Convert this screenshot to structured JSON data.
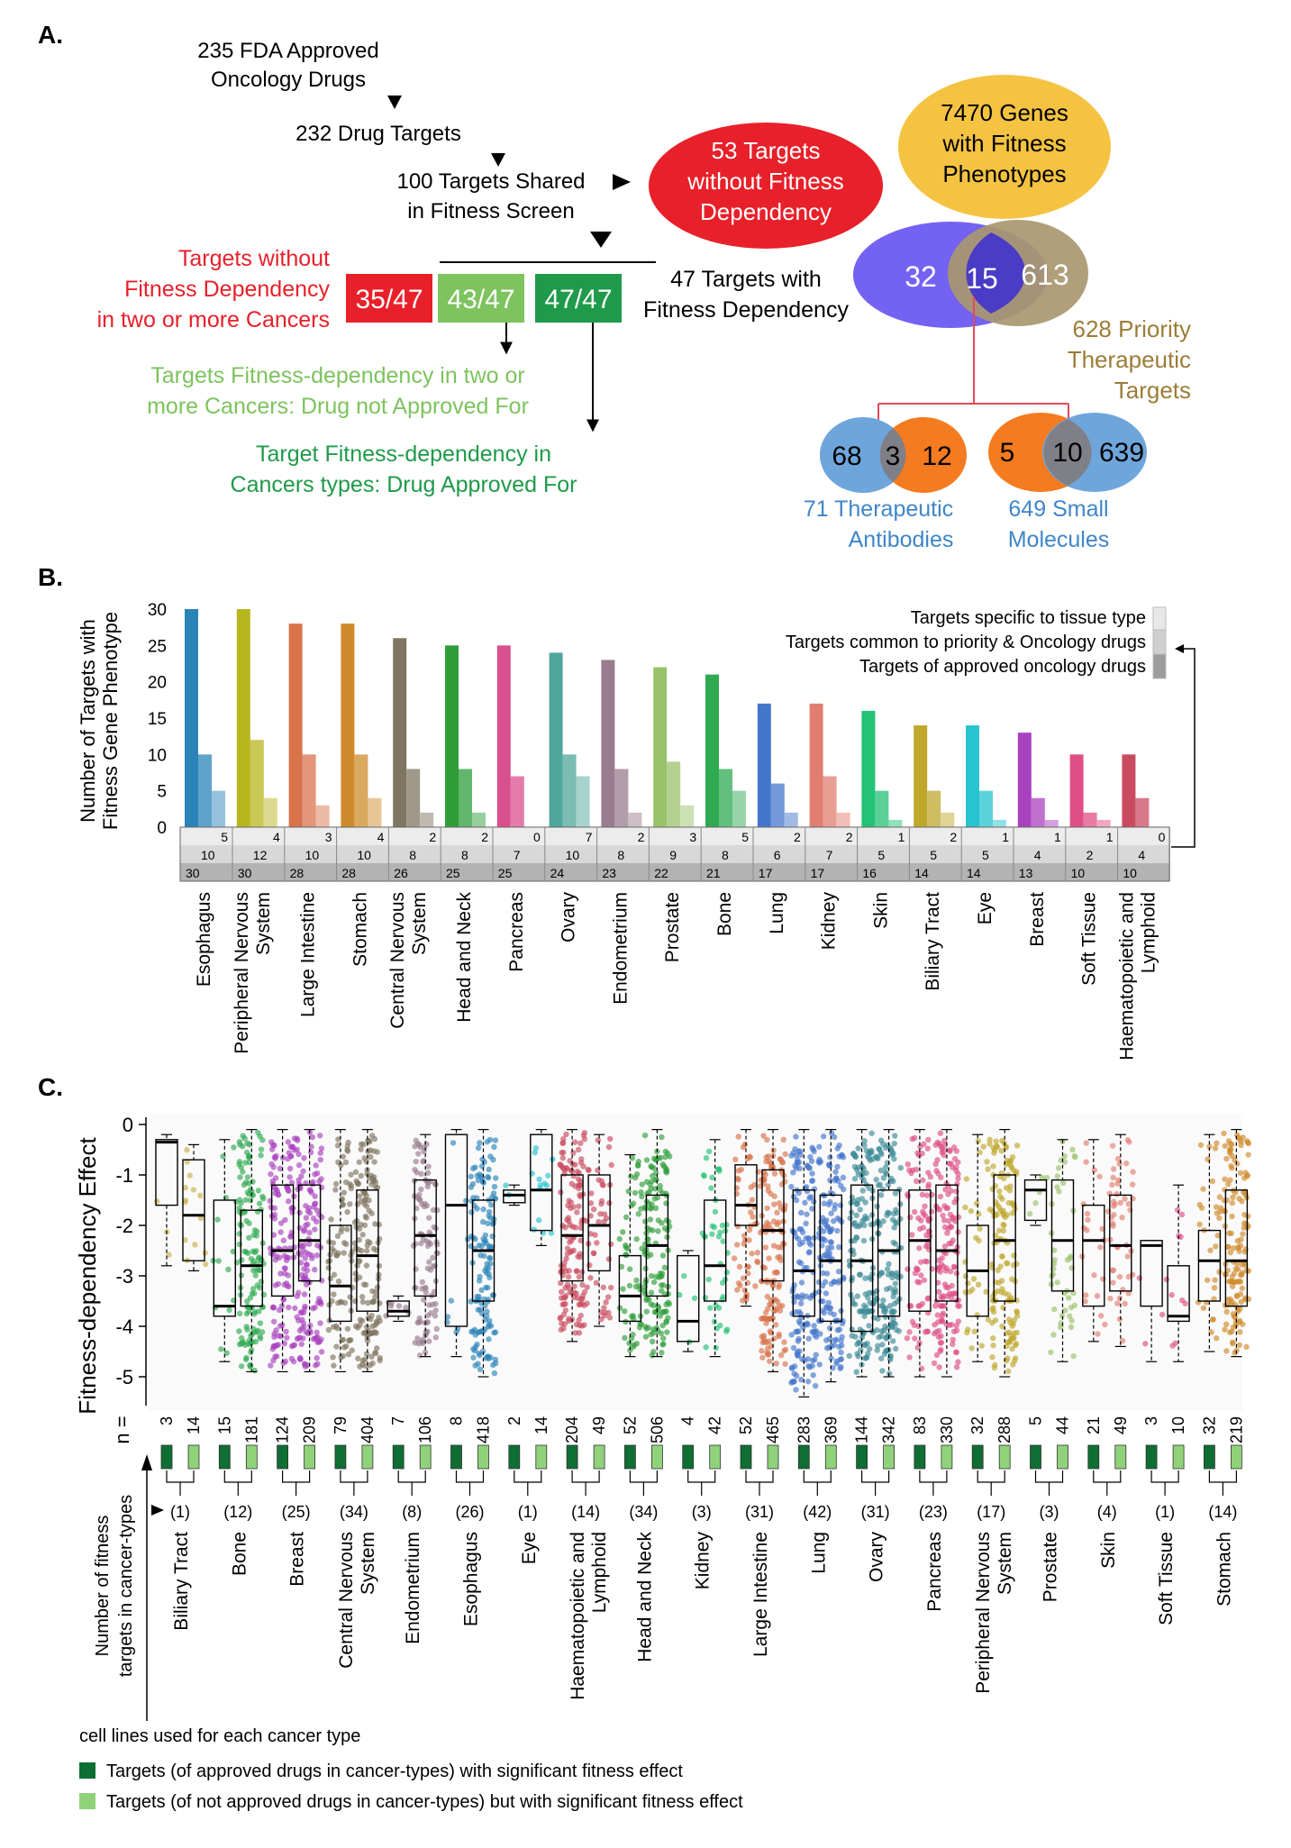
{
  "panelA": {
    "label": "A.",
    "step1": [
      "235 FDA Approved",
      "Oncology Drugs"
    ],
    "step2": "232 Drug Targets",
    "step3": [
      "100 Targets  Shared",
      "in Fitness Screen"
    ],
    "red_ellipse": [
      "53 Targets",
      "without Fitness",
      "Dependency"
    ],
    "yellow_ellipse": [
      "7470 Genes",
      "with Fitness",
      "Phenotypes"
    ],
    "venn_main": {
      "left": "32",
      "mid": "15",
      "right": "613"
    },
    "priority_label": [
      "628 Priority",
      "Therapeutic",
      "Targets"
    ],
    "with_fd_label": [
      "47 Targets with",
      "Fitness Dependency"
    ],
    "boxes": [
      {
        "text": "35/47",
        "color": "#e8202a"
      },
      {
        "text": "43/47",
        "color": "#7dc35e"
      },
      {
        "text": "47/47",
        "color": "#1f9a4a"
      }
    ],
    "red_label": [
      "Targets without",
      "Fitness Dependency",
      "in two or more Cancers"
    ],
    "lightgreen_label": [
      "Targets Fitness-dependency in two or",
      "more Cancers: Drug not Approved For"
    ],
    "darkgreen_label": [
      "Target Fitness-dependency in",
      "Cancers types: Drug Approved For"
    ],
    "venn_ab": {
      "left": "68",
      "mid": "3",
      "right": "12"
    },
    "venn_sm": {
      "left": "5",
      "mid": "10",
      "right": "639"
    },
    "ab_label": [
      "71 Therapeutic",
      "Antibodies"
    ],
    "sm_label": [
      "649 Small",
      "Molecules"
    ]
  },
  "panelB": {
    "label": "B.",
    "legend": [
      "Targets specific to tissue type",
      "Targets common to priority & Oncology drugs",
      "Targets of approved oncology drugs"
    ]
  },
  "panelC": {
    "label": "C.",
    "ylabel": "Fitness-dependency Effect",
    "n_label": "n =",
    "side_label": [
      "Number of fitness",
      "targets in cancer-types"
    ],
    "footer_note": "cell lines used for each cancer type",
    "legend": [
      {
        "text": "Targets (of approved drugs in cancer-types) with significant fitness effect",
        "color": "#0f6e33"
      },
      {
        "text": "Targets (of not approved drugs in cancer-types) but with significant fitness effect",
        "color": "#8fd27a"
      }
    ]
  },
  "chart_data": [
    {
      "type": "bar",
      "ylabel": "Number of Targets with Fitness Gene Phenotype",
      "ylim": [
        0,
        30
      ],
      "yticks": [
        0,
        5,
        10,
        15,
        20,
        25,
        30
      ],
      "categories": [
        "Esophagus",
        "Peripheral Nervous System",
        "Large Intestine",
        "Stomach",
        "Central Nervous System",
        "Head and Neck",
        "Pancreas",
        "Ovary",
        "Endometrium",
        "Prostate",
        "Bone",
        "Lung",
        "Kidney",
        "Skin",
        "Biliary Tract",
        "Eye",
        "Breast",
        "Soft Tissue",
        "Haematopoietic and Lymphoid"
      ],
      "colors": [
        "#2b84b8",
        "#b8b51e",
        "#d9734c",
        "#cf8b2b",
        "#7f7560",
        "#2f9e3a",
        "#d9508f",
        "#4fa69a",
        "#9a7c8f",
        "#99c26a",
        "#2faa52",
        "#4477cc",
        "#e27e70",
        "#23c274",
        "#bfa72c",
        "#27c3cf",
        "#a942bf",
        "#df4f86",
        "#c94b60"
      ],
      "series": [
        {
          "name": "Targets of approved oncology drugs",
          "values": [
            30,
            30,
            28,
            28,
            26,
            25,
            25,
            24,
            23,
            22,
            21,
            17,
            17,
            16,
            14,
            14,
            13,
            10,
            10
          ]
        },
        {
          "name": "Targets common to priority & Oncology drugs",
          "values": [
            10,
            12,
            10,
            10,
            8,
            8,
            7,
            10,
            8,
            9,
            8,
            6,
            7,
            5,
            5,
            5,
            4,
            2,
            4
          ]
        },
        {
          "name": "Targets specific to tissue type",
          "values": [
            5,
            4,
            3,
            4,
            2,
            2,
            0,
            7,
            2,
            3,
            5,
            2,
            2,
            1,
            2,
            1,
            1,
            1,
            0
          ]
        }
      ]
    },
    {
      "type": "box",
      "ylabel": "Fitness-dependency Effect",
      "ylim": [
        -5.5,
        0
      ],
      "yticks": [
        0,
        -1,
        -2,
        -3,
        -4,
        -5
      ],
      "categories": [
        "Biliary Tract",
        "Bone",
        "Breast",
        "Central Nervous System",
        "Endometrium",
        "Esophagus",
        "Eye",
        "Haematopoietic and Lymphoid",
        "Head and Neck",
        "Kidney",
        "Large Intestine",
        "Lung",
        "Ovary",
        "Pancreas",
        "Peripheral Nervous System",
        "Prostate",
        "Skin",
        "Soft Tissue",
        "Stomach"
      ],
      "target_counts": [
        "(1)",
        "(12)",
        "(25)",
        "(34)",
        "(8)",
        "(26)",
        "(1)",
        "(14)",
        "(34)",
        "(3)",
        "(31)",
        "(42)",
        "(31)",
        "(23)",
        "(17)",
        "(3)",
        "(4)",
        "(1)",
        "(14)"
      ],
      "colors": [
        "#c9b04a",
        "#2faa52",
        "#a942bf",
        "#7f7560",
        "#9a7c8f",
        "#2b84b8",
        "#27c3cf",
        "#c94b60",
        "#2f9e3a",
        "#23c274",
        "#d9734c",
        "#4477cc",
        "#3c8b96",
        "#df4f86",
        "#bfa72c",
        "#99c26a",
        "#e27e70",
        "#df4f86",
        "#cf8b2b"
      ],
      "boxes": [
        [
          {
            "n": "3",
            "q1": -1.6,
            "med": -0.35,
            "q3": -0.3,
            "lo": -2.8,
            "hi": -0.2
          },
          {
            "n": "14",
            "q1": -2.7,
            "med": -1.8,
            "q3": -0.7,
            "lo": -2.9,
            "hi": -0.4
          }
        ],
        [
          {
            "n": "15",
            "q1": -3.8,
            "med": -3.6,
            "q3": -1.5,
            "lo": -4.7,
            "hi": -0.3
          },
          {
            "n": "181",
            "q1": -3.6,
            "med": -2.8,
            "q3": -1.7,
            "lo": -4.9,
            "hi": -0.1
          }
        ],
        [
          {
            "n": "124",
            "q1": -3.4,
            "med": -2.5,
            "q3": -1.2,
            "lo": -4.9,
            "hi": -0.1
          },
          {
            "n": "209",
            "q1": -3.1,
            "med": -2.3,
            "q3": -1.2,
            "lo": -4.9,
            "hi": -0.1
          }
        ],
        [
          {
            "n": "79",
            "q1": -3.9,
            "med": -3.2,
            "q3": -2.0,
            "lo": -4.9,
            "hi": -0.1
          },
          {
            "n": "404",
            "q1": -3.7,
            "med": -2.6,
            "q3": -1.3,
            "lo": -4.9,
            "hi": -0.1
          }
        ],
        [
          {
            "n": "7",
            "q1": -3.8,
            "med": -3.7,
            "q3": -3.5,
            "lo": -3.9,
            "hi": -3.4
          },
          {
            "n": "106",
            "q1": -3.4,
            "med": -2.2,
            "q3": -1.1,
            "lo": -4.6,
            "hi": -0.2
          }
        ],
        [
          {
            "n": "8",
            "q1": -4.0,
            "med": -1.6,
            "q3": -0.2,
            "lo": -4.6,
            "hi": -0.1
          },
          {
            "n": "418",
            "q1": -3.5,
            "med": -2.5,
            "q3": -1.5,
            "lo": -5.0,
            "hi": -0.1
          }
        ],
        [
          {
            "n": "2",
            "q1": -1.55,
            "med": -1.4,
            "q3": -1.3,
            "lo": -1.6,
            "hi": -1.2
          },
          {
            "n": "14",
            "q1": -2.1,
            "med": -1.3,
            "q3": -0.2,
            "lo": -2.4,
            "hi": -0.1
          }
        ],
        [
          {
            "n": "204",
            "q1": -3.1,
            "med": -2.2,
            "q3": -1.0,
            "lo": -4.3,
            "hi": -0.1
          },
          {
            "n": "49",
            "q1": -2.9,
            "med": -2.0,
            "q3": -1.0,
            "lo": -4.0,
            "hi": -0.2
          }
        ],
        [
          {
            "n": "52",
            "q1": -3.9,
            "med": -3.4,
            "q3": -2.6,
            "lo": -4.6,
            "hi": -0.6
          },
          {
            "n": "506",
            "q1": -3.4,
            "med": -2.4,
            "q3": -1.4,
            "lo": -4.6,
            "hi": -0.1
          }
        ],
        [
          {
            "n": "4",
            "q1": -4.3,
            "med": -3.9,
            "q3": -2.6,
            "lo": -4.5,
            "hi": -2.5
          },
          {
            "n": "42",
            "q1": -3.5,
            "med": -2.8,
            "q3": -1.5,
            "lo": -4.6,
            "hi": -0.3
          }
        ],
        [
          {
            "n": "52",
            "q1": -2.0,
            "med": -1.6,
            "q3": -0.8,
            "lo": -3.6,
            "hi": -0.1
          },
          {
            "n": "465",
            "q1": -3.1,
            "med": -2.1,
            "q3": -0.9,
            "lo": -4.9,
            "hi": -0.1
          }
        ],
        [
          {
            "n": "283",
            "q1": -3.8,
            "med": -2.9,
            "q3": -1.3,
            "lo": -5.4,
            "hi": -0.1
          },
          {
            "n": "369",
            "q1": -3.9,
            "med": -2.7,
            "q3": -1.4,
            "lo": -5.1,
            "hi": -0.1
          }
        ],
        [
          {
            "n": "144",
            "q1": -4.1,
            "med": -2.7,
            "q3": -1.2,
            "lo": -5.0,
            "hi": -0.1
          },
          {
            "n": "342",
            "q1": -3.8,
            "med": -2.5,
            "q3": -1.3,
            "lo": -5.0,
            "hi": -0.1
          }
        ],
        [
          {
            "n": "83",
            "q1": -3.7,
            "med": -2.3,
            "q3": -1.3,
            "lo": -5.0,
            "hi": -0.1
          },
          {
            "n": "330",
            "q1": -3.5,
            "med": -2.5,
            "q3": -1.2,
            "lo": -5.0,
            "hi": -0.1
          }
        ],
        [
          {
            "n": "32",
            "q1": -3.8,
            "med": -2.9,
            "q3": -2.0,
            "lo": -4.7,
            "hi": -0.2
          },
          {
            "n": "288",
            "q1": -3.5,
            "med": -2.3,
            "q3": -1.0,
            "lo": -5.0,
            "hi": -0.1
          }
        ],
        [
          {
            "n": "5",
            "q1": -1.9,
            "med": -1.3,
            "q3": -1.1,
            "lo": -2.0,
            "hi": -1.0
          },
          {
            "n": "44",
            "q1": -3.3,
            "med": -2.3,
            "q3": -1.1,
            "lo": -4.7,
            "hi": -0.3
          }
        ],
        [
          {
            "n": "21",
            "q1": -3.6,
            "med": -2.3,
            "q3": -1.6,
            "lo": -4.3,
            "hi": -0.3
          },
          {
            "n": "49",
            "q1": -3.3,
            "med": -2.4,
            "q3": -1.4,
            "lo": -4.4,
            "hi": -0.2
          }
        ],
        [
          {
            "n": "3",
            "q1": -3.6,
            "med": -2.4,
            "q3": -2.3,
            "lo": -4.7,
            "hi": -2.3
          },
          {
            "n": "10",
            "q1": -3.9,
            "med": -3.8,
            "q3": -2.8,
            "lo": -4.7,
            "hi": -1.2
          }
        ],
        [
          {
            "n": "32",
            "q1": -3.5,
            "med": -2.7,
            "q3": -2.1,
            "lo": -4.5,
            "hi": -0.2
          },
          {
            "n": "219",
            "q1": -3.6,
            "med": -2.7,
            "q3": -1.3,
            "lo": -4.6,
            "hi": -0.1
          }
        ]
      ]
    }
  ]
}
